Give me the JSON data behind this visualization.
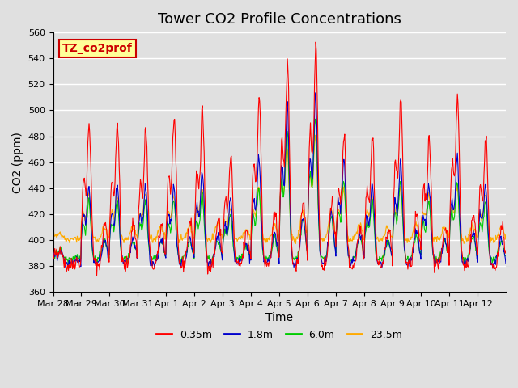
{
  "title": "Tower CO2 Profile Concentrations",
  "xlabel": "Time",
  "ylabel": "CO2 (ppm)",
  "ylim": [
    360,
    560
  ],
  "label": "TZ_co2prof",
  "series_labels": [
    "0.35m",
    "1.8m",
    "6.0m",
    "23.5m"
  ],
  "series_colors": [
    "#ff0000",
    "#0000cc",
    "#00cc00",
    "#ffaa00"
  ],
  "xtick_labels": [
    "Mar 28",
    "Mar 29",
    "Mar 30",
    "Mar 31",
    "Apr 1",
    "Apr 2",
    "Apr 3",
    "Apr 4",
    "Apr 5",
    "Apr 6",
    "Apr 7",
    "Apr 8",
    "Apr 9",
    "Apr 10",
    "Apr 11",
    "Apr 12"
  ],
  "yticks": [
    360,
    380,
    400,
    420,
    440,
    460,
    480,
    500,
    520,
    540,
    560
  ],
  "bg_color": "#e0e0e0",
  "plot_bg": "#e0e0e0",
  "grid_color": "#ffffff",
  "n_points_per_day": 48,
  "n_days": 16,
  "base_co2": 380,
  "diurnal_amp_red": [
    15,
    110,
    110,
    105,
    115,
    120,
    85,
    130,
    155,
    170,
    100,
    100,
    130,
    100,
    130,
    100
  ],
  "diurnal_amp_blue": [
    10,
    60,
    60,
    60,
    60,
    70,
    50,
    80,
    120,
    130,
    80,
    60,
    80,
    60,
    80,
    60
  ],
  "diurnal_amp_green": [
    8,
    45,
    45,
    45,
    45,
    50,
    35,
    55,
    100,
    110,
    60,
    45,
    60,
    45,
    60,
    45
  ],
  "diurnal_amp_orange": [
    5,
    35,
    35,
    35,
    35,
    40,
    25,
    40,
    70,
    80,
    40,
    35,
    40,
    35,
    40,
    35
  ]
}
